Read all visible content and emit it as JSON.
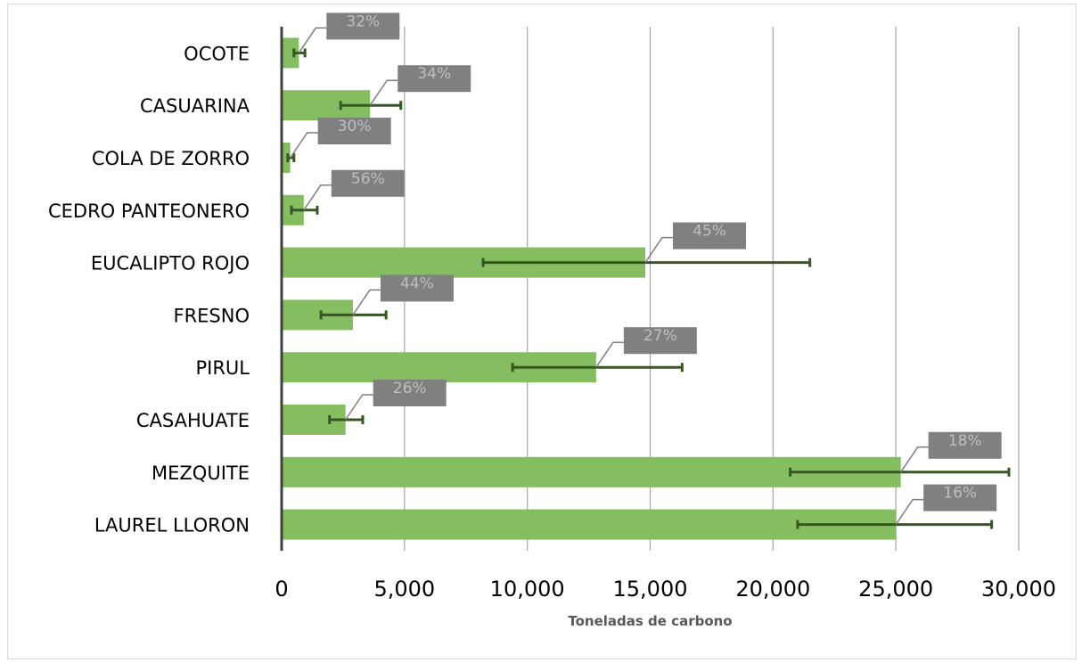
{
  "chart_data": {
    "type": "bar",
    "orientation": "horizontal",
    "categories": [
      "OCOTE",
      "CASUARINA",
      "COLA DE ZORRO",
      "CEDRO PANTEONERO",
      "EUCALIPTO ROJO",
      "FRESNO",
      "PIRUL",
      "CASAHUATE",
      "MEZQUITE",
      "LAUREL LLORON"
    ],
    "values": [
      700,
      3600,
      350,
      900,
      14800,
      2900,
      12800,
      2600,
      25200,
      25000
    ],
    "error_low": [
      500,
      2400,
      250,
      400,
      8200,
      1600,
      9400,
      1950,
      20700,
      21000
    ],
    "error_high": [
      950,
      4850,
      500,
      1450,
      21500,
      4250,
      16300,
      3300,
      29600,
      28900
    ],
    "data_labels": [
      "32%",
      "34%",
      "30%",
      "56%",
      "45%",
      "44%",
      "27%",
      "26%",
      "18%",
      "16%"
    ],
    "xlabel": "Toneladas de carbono",
    "xlim": [
      0,
      30000
    ],
    "x_ticks": [
      0,
      5000,
      10000,
      15000,
      20000,
      25000,
      30000
    ],
    "x_tick_labels": [
      "0",
      "5,000",
      "10,000",
      "15,000",
      "20,000",
      "25,000",
      "30,000"
    ],
    "grid": true,
    "colors": {
      "bar": "#85bd61",
      "error": "#375623",
      "label_box": "#808080",
      "label_text": "#bfbfbf",
      "grid": "#a6a6a6",
      "axis": "#404040"
    }
  }
}
